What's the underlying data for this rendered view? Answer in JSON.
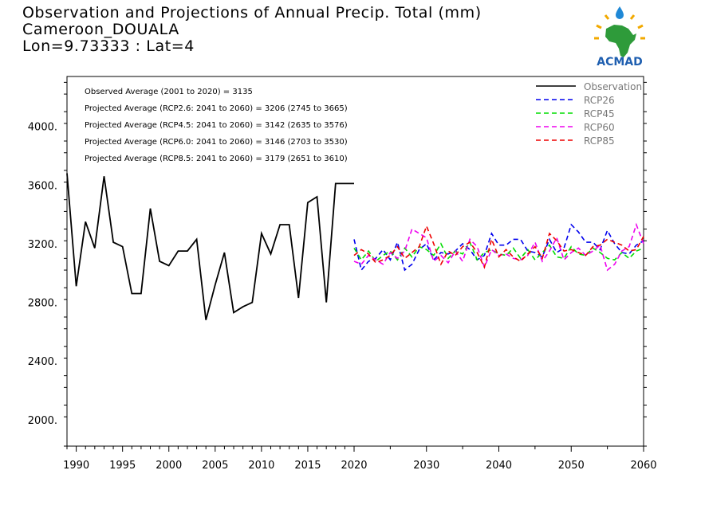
{
  "header": {
    "title": "Observation and Projections of Annual Precip. Total (mm)",
    "location": "Cameroon_DOUALA",
    "coords": "Lon=9.73333 : Lat=4"
  },
  "logo": {
    "text": "ACMAD",
    "icon": "africa-sun-drop-logo"
  },
  "annotations": [
    "Observed Average (2001 to 2020) = 3135",
    "Projected Average (RCP2.6: 2041 to 2060) = 3206 (2745 to 3665)",
    "Projected Average (RCP4.5: 2041 to 2060) = 3142 (2635 to 3576)",
    "Projected Average (RCP6.0: 2041 to 2060) = 3146 (2703 to 3530)",
    "Projected Average (RCP8.5: 2041 to 2060) = 3179 (2651 to 3610)"
  ],
  "chart_data": {
    "type": "line",
    "xlim": [
      1989,
      2060
    ],
    "ylim": [
      1820,
      4340
    ],
    "x_ticks": [
      1990,
      1995,
      2000,
      2005,
      2010,
      2015,
      2020,
      2030,
      2040,
      2050,
      2060
    ],
    "x_tick_labels": [
      "1990",
      "1995",
      "2000",
      "2005",
      "2010",
      "2015",
      "2020",
      "2030",
      "2040",
      "2050",
      "2060"
    ],
    "y_ticks": [
      2000,
      2400,
      2800,
      3200,
      3600,
      4000
    ],
    "y_tick_labels": [
      "2000.",
      "2400.",
      "2800.",
      "3200.",
      "3600.",
      "4000."
    ],
    "legend_position": "top-right",
    "series": [
      {
        "name": "Observation",
        "color": "#000000",
        "dashed": false,
        "x": [
          1989,
          1990,
          1991,
          1992,
          1993,
          1994,
          1995,
          1996,
          1997,
          1998,
          1999,
          2000,
          2001,
          2002,
          2003,
          2004,
          2005,
          2006,
          2007,
          2008,
          2009,
          2010,
          2011,
          2012,
          2013,
          2014,
          2015,
          2016,
          2017,
          2018,
          2019,
          2020
        ],
        "values": [
          3680,
          2910,
          3350,
          3170,
          3660,
          3210,
          3180,
          2860,
          2860,
          3440,
          3080,
          3050,
          3150,
          3150,
          3230,
          2680,
          2920,
          3140,
          2730,
          2770,
          2800,
          3270,
          3130,
          3330,
          3330,
          2830,
          3480,
          3520,
          2800,
          3610,
          3610,
          3610
        ]
      },
      {
        "name": "RCP26",
        "color": "#0000ee",
        "dashed": true,
        "x": [
          2020,
          2021,
          2022,
          2023,
          2024,
          2025,
          2026,
          2027,
          2028,
          2029,
          2030,
          2031,
          2032,
          2033,
          2034,
          2035,
          2036,
          2037,
          2038,
          2039,
          2040,
          2041,
          2042,
          2043,
          2044,
          2045,
          2046,
          2047,
          2048,
          2049,
          2050,
          2051,
          2052,
          2053,
          2054,
          2055,
          2056,
          2057,
          2058,
          2059,
          2060
        ],
        "values": [
          3230,
          3020,
          3080,
          3100,
          3160,
          3090,
          3210,
          3020,
          3060,
          3160,
          3200,
          3090,
          3140,
          3130,
          3150,
          3200,
          3160,
          3090,
          3120,
          3270,
          3190,
          3190,
          3230,
          3230,
          3150,
          3140,
          3110,
          3230,
          3140,
          3170,
          3330,
          3280,
          3210,
          3210,
          3160,
          3290,
          3200,
          3140,
          3130,
          3190,
          3220
        ]
      },
      {
        "name": "RCP45",
        "color": "#00dd00",
        "dashed": true,
        "x": [
          2020,
          2021,
          2022,
          2023,
          2024,
          2025,
          2026,
          2027,
          2028,
          2029,
          2030,
          2031,
          2032,
          2033,
          2034,
          2035,
          2036,
          2037,
          2038,
          2039,
          2040,
          2041,
          2042,
          2043,
          2044,
          2045,
          2046,
          2047,
          2048,
          2049,
          2050,
          2051,
          2052,
          2053,
          2054,
          2055,
          2056,
          2057,
          2058,
          2059,
          2060
        ],
        "values": [
          3170,
          3090,
          3150,
          3080,
          3120,
          3150,
          3090,
          3170,
          3110,
          3180,
          3160,
          3120,
          3200,
          3100,
          3150,
          3130,
          3210,
          3090,
          3140,
          3160,
          3130,
          3120,
          3170,
          3100,
          3160,
          3090,
          3140,
          3190,
          3110,
          3100,
          3180,
          3130,
          3120,
          3170,
          3140,
          3100,
          3090,
          3140,
          3100,
          3150,
          3170
        ]
      },
      {
        "name": "RCP60",
        "color": "#ee00ee",
        "dashed": true,
        "x": [
          2020,
          2021,
          2022,
          2023,
          2024,
          2025,
          2026,
          2027,
          2028,
          2029,
          2030,
          2031,
          2032,
          2033,
          2034,
          2035,
          2036,
          2037,
          2038,
          2039,
          2040,
          2041,
          2042,
          2043,
          2044,
          2045,
          2046,
          2047,
          2048,
          2049,
          2050,
          2051,
          2052,
          2053,
          2054,
          2055,
          2056,
          2057,
          2058,
          2059,
          2060
        ],
        "values": [
          3080,
          3060,
          3120,
          3090,
          3060,
          3140,
          3100,
          3150,
          3300,
          3270,
          3240,
          3080,
          3120,
          3070,
          3150,
          3080,
          3230,
          3180,
          3040,
          3160,
          3120,
          3130,
          3100,
          3090,
          3120,
          3210,
          3080,
          3150,
          3240,
          3090,
          3140,
          3170,
          3120,
          3150,
          3190,
          3020,
          3060,
          3150,
          3180,
          3330,
          3200
        ]
      },
      {
        "name": "RCP85",
        "color": "#ee0000",
        "dashed": true,
        "x": [
          2020,
          2021,
          2022,
          2023,
          2024,
          2025,
          2026,
          2027,
          2028,
          2029,
          2030,
          2031,
          2032,
          2033,
          2034,
          2035,
          2036,
          2037,
          2038,
          2039,
          2040,
          2041,
          2042,
          2043,
          2044,
          2045,
          2046,
          2047,
          2048,
          2049,
          2050,
          2051,
          2052,
          2053,
          2054,
          2055,
          2056,
          2057,
          2058,
          2059,
          2060
        ],
        "values": [
          3120,
          3160,
          3130,
          3070,
          3090,
          3120,
          3180,
          3100,
          3140,
          3180,
          3320,
          3200,
          3060,
          3150,
          3120,
          3180,
          3210,
          3140,
          3040,
          3230,
          3110,
          3160,
          3110,
          3080,
          3130,
          3180,
          3100,
          3270,
          3220,
          3150,
          3160,
          3140,
          3120,
          3180,
          3190,
          3230,
          3210,
          3190,
          3150,
          3160,
          3250
        ]
      }
    ]
  }
}
